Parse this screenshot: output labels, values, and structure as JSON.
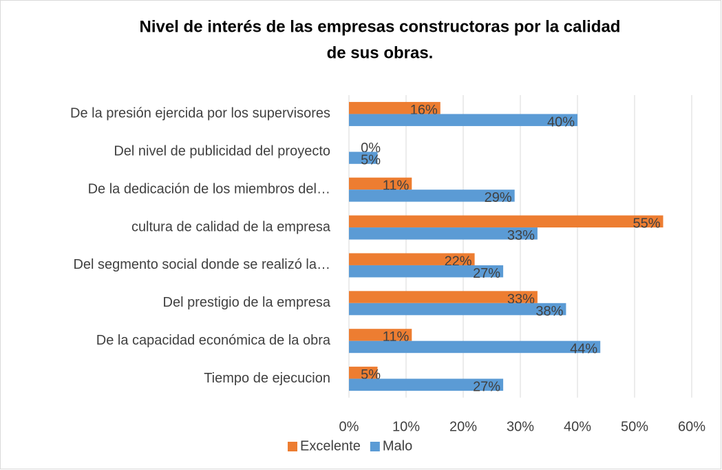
{
  "chart_data": {
    "type": "bar",
    "orientation": "horizontal",
    "title": [
      "Nivel de interés de las empresas constructoras por la calidad",
      "de sus obras."
    ],
    "categories": [
      "De la presión ejercida por los supervisores",
      "Del nivel de publicidad del proyecto",
      "De la dedicación de los miembros del…",
      "cultura de calidad de la empresa",
      "Del segmento social donde se realizó la…",
      "Del prestigio de la empresa",
      "De la capacidad económica de la obra",
      "Tiempo de ejecucion"
    ],
    "series": [
      {
        "name": "Excelente",
        "color": "#ED7D31",
        "values": [
          16,
          0,
          11,
          55,
          22,
          33,
          11,
          5
        ],
        "value_labels": [
          "16%",
          "0%",
          "11%",
          "55%",
          "22%",
          "33%",
          "11%",
          "5%"
        ]
      },
      {
        "name": "Malo",
        "color": "#5B9BD5",
        "values": [
          40,
          5,
          29,
          33,
          27,
          38,
          44,
          27
        ],
        "value_labels": [
          "40%",
          "5%",
          "29%",
          "33%",
          "27%",
          "38%",
          "44%",
          "27%"
        ]
      }
    ],
    "xlim": [
      0,
      60
    ],
    "xticks": [
      {
        "value": 0,
        "label": "0%"
      },
      {
        "value": 10,
        "label": "10%"
      },
      {
        "value": 20,
        "label": "20%"
      },
      {
        "value": 30,
        "label": "30%"
      },
      {
        "value": 40,
        "label": "40%"
      },
      {
        "value": 50,
        "label": "50%"
      },
      {
        "value": 60,
        "label": "60%"
      }
    ],
    "grid": true,
    "legend": "bottom"
  }
}
